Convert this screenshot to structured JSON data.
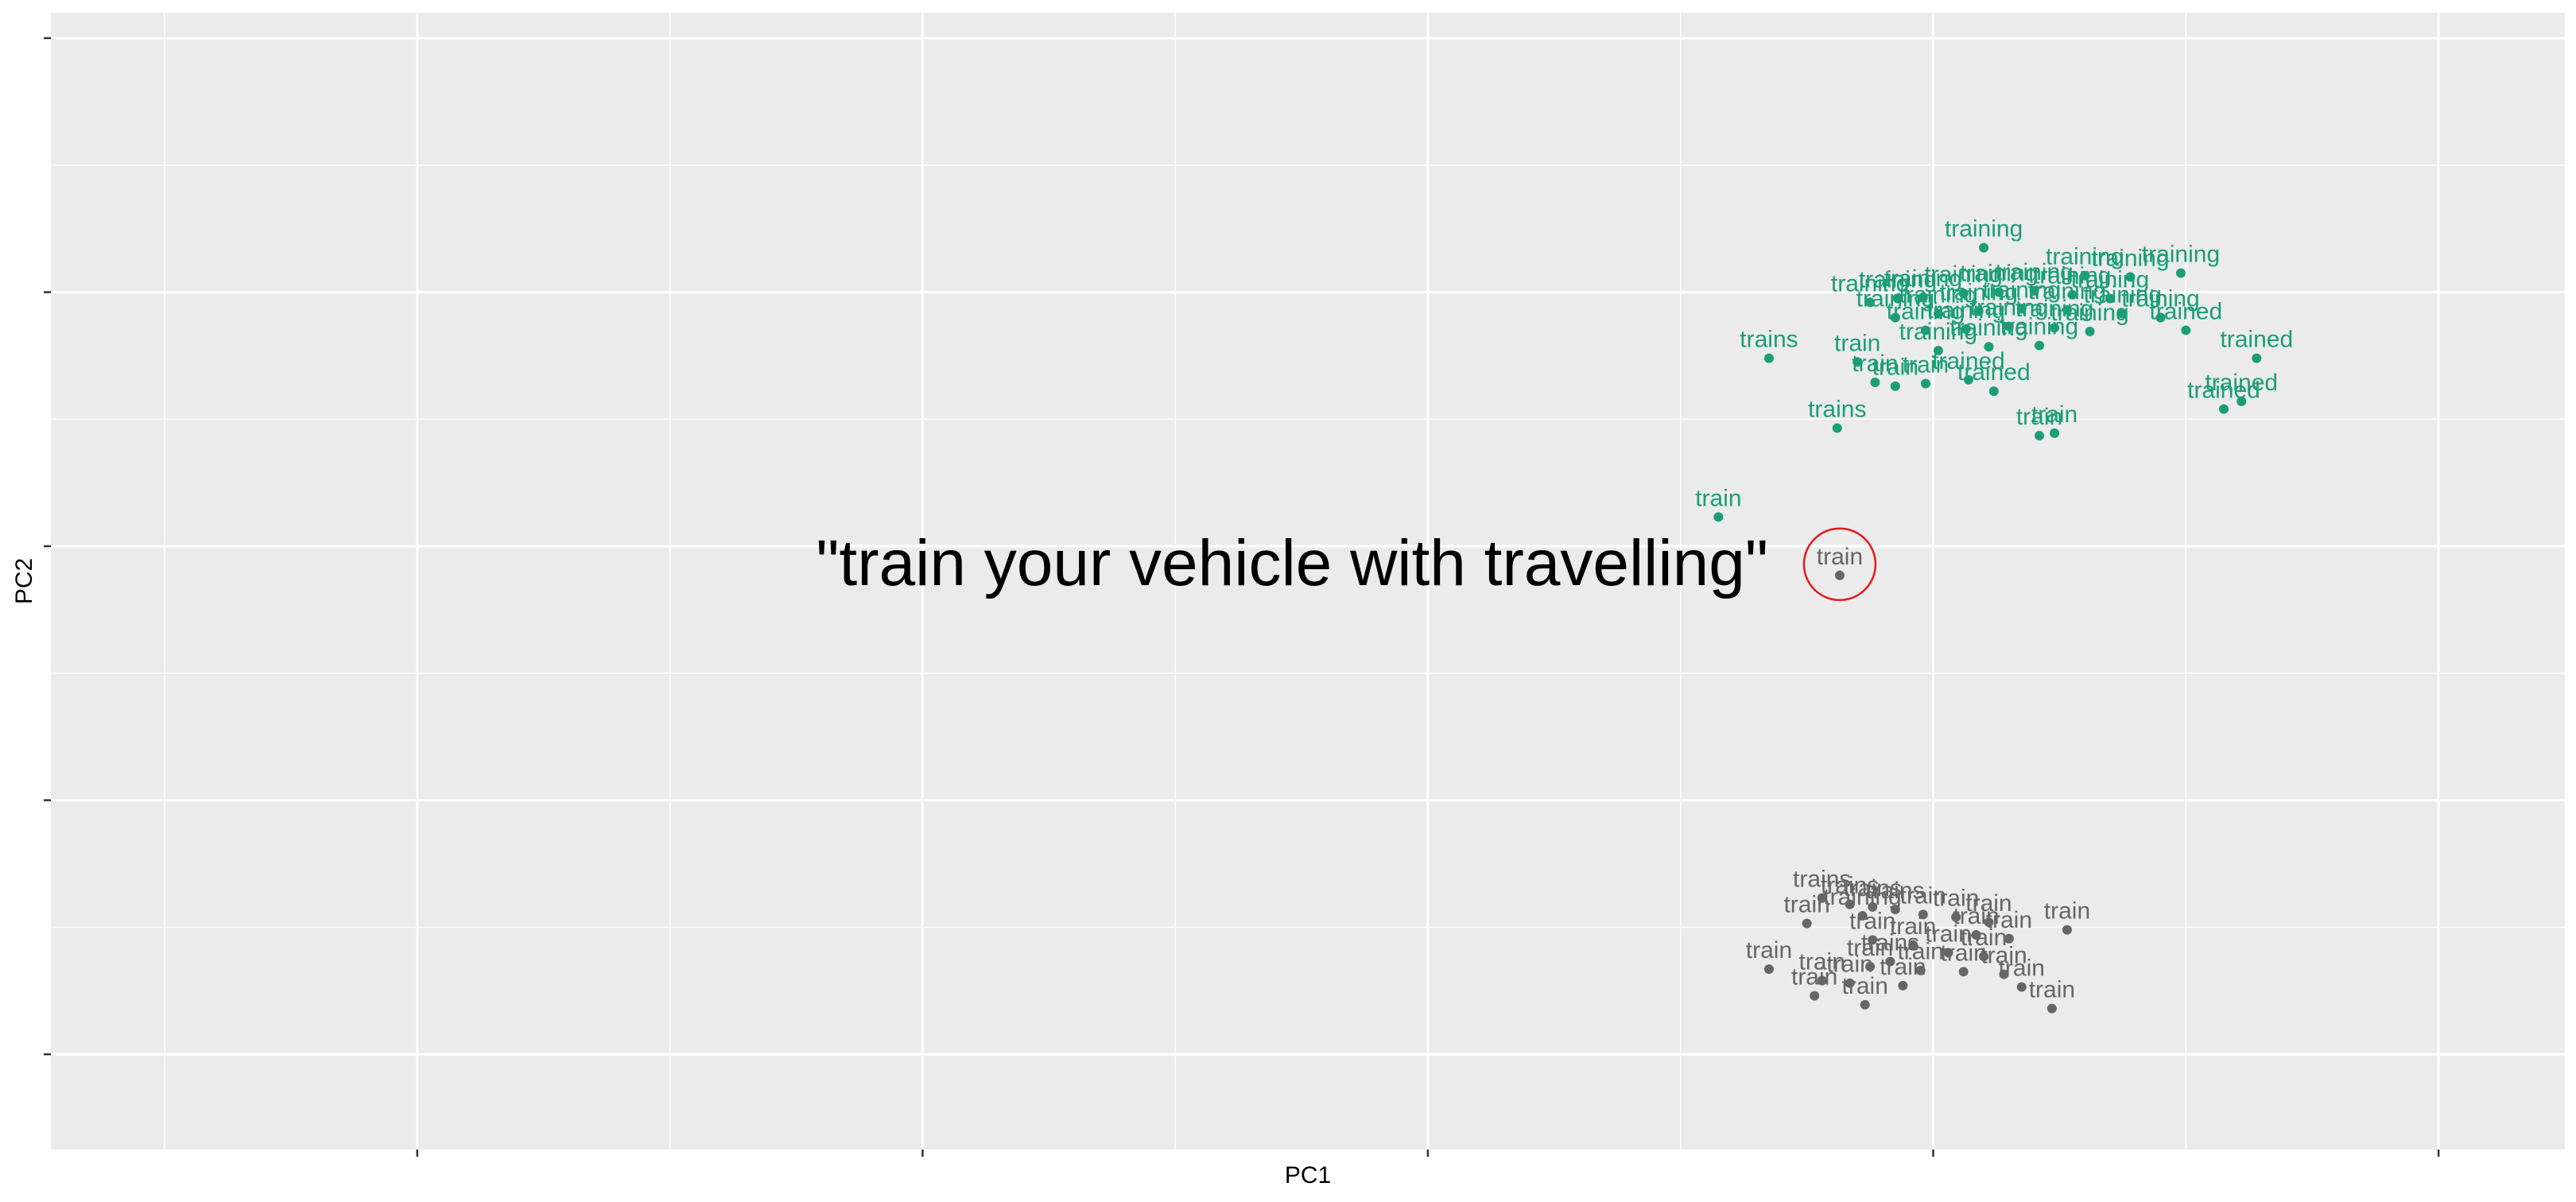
{
  "chart_data": {
    "type": "scatter",
    "title": "",
    "xlabel": "PC1",
    "ylabel": "PC2",
    "xlim": [
      -5.25,
      4.7
    ],
    "ylim": [
      -3.75,
      5.2
    ],
    "x_ticks": [
      -3.8,
      -1.8,
      0.2,
      2.2,
      4.2
    ],
    "y_ticks": [
      -3.0,
      -1.0,
      1.0,
      3.0,
      5.0
    ],
    "tick_labels_visible": false,
    "grid": true,
    "legend": "none",
    "colors": {
      "panel": "#EBEBEB",
      "grid": "#FFFFFF",
      "green": "#1B9E77",
      "gray": "#666666",
      "highlight": "#E41A1C"
    },
    "annotation": {
      "text": "\"train your vehicle with travelling\"",
      "highlight_index": 0
    },
    "series": [
      {
        "color": "#666666",
        "points": [
          {
            "x": 1.83,
            "y": 0.77,
            "label": "train"
          },
          {
            "x": 1.55,
            "y": -2.33,
            "label": "train"
          },
          {
            "x": 1.76,
            "y": -1.77,
            "label": "trains"
          },
          {
            "x": 1.7,
            "y": -1.97,
            "label": "train"
          },
          {
            "x": 1.87,
            "y": -1.82,
            "label": "trains"
          },
          {
            "x": 1.96,
            "y": -1.84,
            "label": "trains"
          },
          {
            "x": 1.92,
            "y": -1.91,
            "label": "training"
          },
          {
            "x": 2.05,
            "y": -1.86,
            "label": "trains"
          },
          {
            "x": 2.16,
            "y": -1.9,
            "label": "train"
          },
          {
            "x": 2.29,
            "y": -1.92,
            "label": "train"
          },
          {
            "x": 2.42,
            "y": -1.96,
            "label": "train"
          },
          {
            "x": 2.73,
            "y": -2.02,
            "label": "train"
          },
          {
            "x": 2.37,
            "y": -2.06,
            "label": "train"
          },
          {
            "x": 2.5,
            "y": -2.09,
            "label": "train"
          },
          {
            "x": 1.96,
            "y": -2.1,
            "label": "train"
          },
          {
            "x": 2.12,
            "y": -2.14,
            "label": "train"
          },
          {
            "x": 2.26,
            "y": -2.2,
            "label": "train"
          },
          {
            "x": 2.4,
            "y": -2.23,
            "label": "train"
          },
          {
            "x": 1.95,
            "y": -2.31,
            "label": "train"
          },
          {
            "x": 2.03,
            "y": -2.27,
            "label": "trains"
          },
          {
            "x": 2.15,
            "y": -2.34,
            "label": "train"
          },
          {
            "x": 2.32,
            "y": -2.35,
            "label": "train"
          },
          {
            "x": 2.48,
            "y": -2.37,
            "label": "train"
          },
          {
            "x": 1.76,
            "y": -2.42,
            "label": "train"
          },
          {
            "x": 1.87,
            "y": -2.44,
            "label": "train"
          },
          {
            "x": 2.08,
            "y": -2.46,
            "label": "train"
          },
          {
            "x": 2.55,
            "y": -2.47,
            "label": "train"
          },
          {
            "x": 1.73,
            "y": -2.54,
            "label": "train"
          },
          {
            "x": 1.93,
            "y": -2.61,
            "label": "train"
          },
          {
            "x": 2.67,
            "y": -2.64,
            "label": "train"
          }
        ]
      },
      {
        "color": "#1B9E77",
        "points": [
          {
            "x": 1.35,
            "y": 1.23,
            "label": "train"
          },
          {
            "x": 2.4,
            "y": 3.35,
            "label": "training"
          },
          {
            "x": 2.8,
            "y": 3.13,
            "label": "training"
          },
          {
            "x": 2.98,
            "y": 3.12,
            "label": "training"
          },
          {
            "x": 3.18,
            "y": 3.15,
            "label": "training"
          },
          {
            "x": 1.95,
            "y": 2.92,
            "label": "training"
          },
          {
            "x": 2.06,
            "y": 2.95,
            "label": "training"
          },
          {
            "x": 2.16,
            "y": 2.96,
            "label": "training"
          },
          {
            "x": 2.32,
            "y": 2.99,
            "label": "training"
          },
          {
            "x": 2.46,
            "y": 3.0,
            "label": "training"
          },
          {
            "x": 2.6,
            "y": 3.01,
            "label": "training"
          },
          {
            "x": 2.75,
            "y": 2.98,
            "label": "training"
          },
          {
            "x": 2.9,
            "y": 2.95,
            "label": "training"
          },
          {
            "x": 2.05,
            "y": 2.8,
            "label": "training"
          },
          {
            "x": 2.22,
            "y": 2.83,
            "label": "training"
          },
          {
            "x": 2.38,
            "y": 2.85,
            "label": "training"
          },
          {
            "x": 2.55,
            "y": 2.87,
            "label": "training"
          },
          {
            "x": 2.73,
            "y": 2.86,
            "label": "training"
          },
          {
            "x": 2.95,
            "y": 2.83,
            "label": "training"
          },
          {
            "x": 3.1,
            "y": 2.8,
            "label": "training"
          },
          {
            "x": 2.17,
            "y": 2.7,
            "label": "training"
          },
          {
            "x": 2.33,
            "y": 2.71,
            "label": "training"
          },
          {
            "x": 2.5,
            "y": 2.73,
            "label": "training"
          },
          {
            "x": 2.68,
            "y": 2.72,
            "label": "training"
          },
          {
            "x": 2.82,
            "y": 2.69,
            "label": "training"
          },
          {
            "x": 3.2,
            "y": 2.7,
            "label": "trained"
          },
          {
            "x": 1.55,
            "y": 2.48,
            "label": "trains"
          },
          {
            "x": 1.9,
            "y": 2.45,
            "label": "train"
          },
          {
            "x": 2.22,
            "y": 2.54,
            "label": "training"
          },
          {
            "x": 2.42,
            "y": 2.57,
            "label": "training"
          },
          {
            "x": 2.62,
            "y": 2.58,
            "label": "training"
          },
          {
            "x": 3.48,
            "y": 2.48,
            "label": "trained"
          },
          {
            "x": 1.97,
            "y": 2.29,
            "label": "train"
          },
          {
            "x": 2.05,
            "y": 2.26,
            "label": "train"
          },
          {
            "x": 2.17,
            "y": 2.28,
            "label": "train"
          },
          {
            "x": 2.34,
            "y": 2.31,
            "label": "trained"
          },
          {
            "x": 2.44,
            "y": 2.22,
            "label": "trained"
          },
          {
            "x": 3.42,
            "y": 2.14,
            "label": "trained"
          },
          {
            "x": 3.35,
            "y": 2.08,
            "label": "trained"
          },
          {
            "x": 1.82,
            "y": 1.93,
            "label": "trains"
          },
          {
            "x": 2.62,
            "y": 1.87,
            "label": "train"
          },
          {
            "x": 2.68,
            "y": 1.89,
            "label": "train"
          }
        ]
      }
    ]
  }
}
